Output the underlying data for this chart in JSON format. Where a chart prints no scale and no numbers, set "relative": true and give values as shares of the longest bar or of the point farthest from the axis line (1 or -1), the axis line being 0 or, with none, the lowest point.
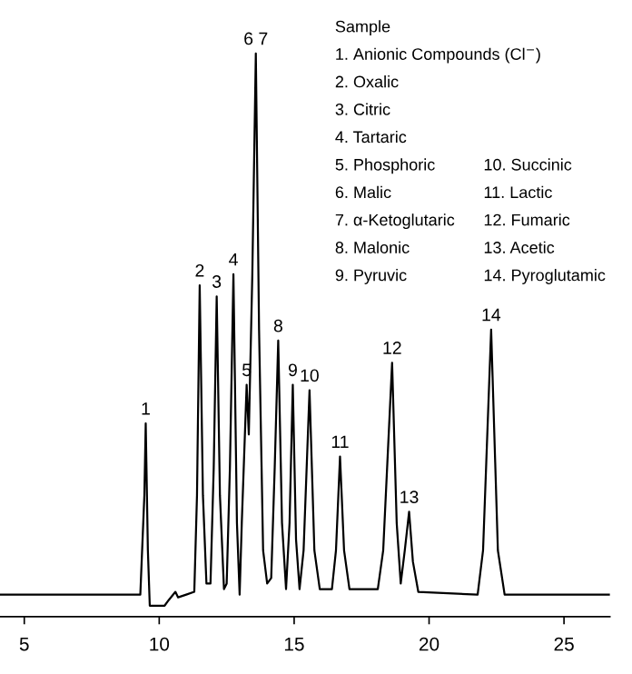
{
  "chart_data": {
    "type": "line",
    "relative": true,
    "line_style": "solid",
    "marker": "none",
    "grid": false,
    "legend": false,
    "tick_labels": "x",
    "xlim": [
      4.1,
      26.7
    ],
    "xticks": [
      5,
      10,
      15,
      20,
      25
    ],
    "series": [
      {
        "color": "#000000",
        "x": [
          4.1,
          9.3,
          9.45,
          9.5,
          9.58,
          9.65,
          10.2,
          10.35,
          10.6,
          10.7,
          11.0,
          11.3,
          11.4,
          11.5,
          11.62,
          11.75,
          11.9,
          12.02,
          12.13,
          12.25,
          12.4,
          12.5,
          12.62,
          12.75,
          12.88,
          12.98,
          13.06,
          13.24,
          13.32,
          13.45,
          13.58,
          13.7,
          13.85,
          14.0,
          14.15,
          14.28,
          14.41,
          14.55,
          14.7,
          14.83,
          14.95,
          15.07,
          15.2,
          15.35,
          15.57,
          15.75,
          15.95,
          16.4,
          16.55,
          16.7,
          16.85,
          17.05,
          18.1,
          18.3,
          18.63,
          18.8,
          18.95,
          19.1,
          19.26,
          19.4,
          19.6,
          21.8,
          22.0,
          22.3,
          22.55,
          22.8,
          26.7
        ],
        "values": [
          0.02,
          0.02,
          0.2,
          0.33,
          0.1,
          0.0,
          0.0,
          0.01,
          0.025,
          0.015,
          0.02,
          0.025,
          0.2,
          0.58,
          0.2,
          0.04,
          0.04,
          0.25,
          0.56,
          0.2,
          0.03,
          0.04,
          0.25,
          0.6,
          0.15,
          0.02,
          0.15,
          0.4,
          0.31,
          0.6,
          1.0,
          0.5,
          0.1,
          0.04,
          0.05,
          0.25,
          0.48,
          0.15,
          0.03,
          0.15,
          0.4,
          0.12,
          0.03,
          0.1,
          0.39,
          0.1,
          0.03,
          0.03,
          0.1,
          0.27,
          0.1,
          0.03,
          0.03,
          0.1,
          0.44,
          0.15,
          0.04,
          0.1,
          0.17,
          0.08,
          0.025,
          0.02,
          0.1,
          0.5,
          0.1,
          0.02,
          0.02
        ]
      }
    ],
    "annotations": [
      {
        "text": "1",
        "x": 9.5,
        "y": 0.33
      },
      {
        "text": "2",
        "x": 11.5,
        "y": 0.58
      },
      {
        "text": "3",
        "x": 12.13,
        "y": 0.56
      },
      {
        "text": "4",
        "x": 12.75,
        "y": 0.6
      },
      {
        "text": "5",
        "x": 13.24,
        "y": 0.4
      },
      {
        "text": "6 7",
        "x": 13.58,
        "y": 1.0
      },
      {
        "text": "8",
        "x": 14.41,
        "y": 0.48
      },
      {
        "text": "9",
        "x": 14.95,
        "y": 0.4
      },
      {
        "text": "10",
        "x": 15.57,
        "y": 0.39
      },
      {
        "text": "11",
        "x": 16.7,
        "y": 0.27
      },
      {
        "text": "12",
        "x": 18.63,
        "y": 0.44
      },
      {
        "text": "13",
        "x": 19.26,
        "y": 0.17
      },
      {
        "text": "14",
        "x": 22.3,
        "y": 0.5
      },
      "Sample",
      "1. Anionic Compounds (Cl$^{−}$)",
      "2. Oxalic",
      "3. Citric",
      "4. Tartaric",
      "5. Phosphoric",
      "6. Malic",
      "7. α-Ketoglutaric",
      "8. Malonic",
      "9. Pyruvic",
      "10. Succinic",
      "11. Lactic",
      "12. Fumaric",
      "13. Acetic",
      "14. Pyroglutamic"
    ]
  }
}
